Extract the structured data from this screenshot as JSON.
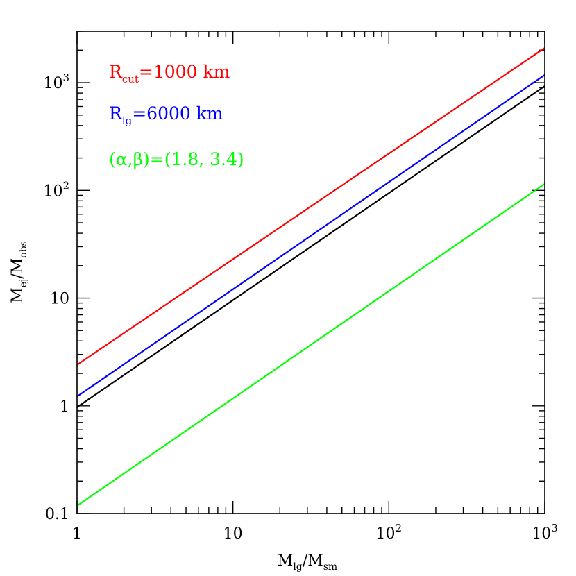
{
  "chart_data": {
    "type": "line",
    "xscale": "log",
    "yscale": "log",
    "xlim": [
      1,
      1000
    ],
    "ylim": [
      0.1,
      3000
    ],
    "x_ticks": [
      {
        "value": 1,
        "base": "1",
        "exp": ""
      },
      {
        "value": 10,
        "base": "10",
        "exp": ""
      },
      {
        "value": 100,
        "base": "10",
        "exp": "2"
      },
      {
        "value": 1000,
        "base": "10",
        "exp": "3"
      }
    ],
    "y_ticks": [
      {
        "value": 0.1,
        "base": "0.1",
        "exp": ""
      },
      {
        "value": 1,
        "base": "1",
        "exp": ""
      },
      {
        "value": 10,
        "base": "10",
        "exp": ""
      },
      {
        "value": 100,
        "base": "10",
        "exp": "2"
      },
      {
        "value": 1000,
        "base": "10",
        "exp": "3"
      }
    ],
    "xlabel": {
      "main1": "M",
      "sub1": "lg",
      "sep": "/",
      "main2": "M",
      "sub2": "sm"
    },
    "ylabel": {
      "main1": "M",
      "sub1": "ej",
      "sep": "/",
      "main2": "M",
      "sub2": "obs"
    },
    "grid": false,
    "series": [
      {
        "color": "#ff0000",
        "x": [
          1,
          1000
        ],
        "y": [
          2.4,
          2100
        ]
      },
      {
        "color": "#0000ff",
        "x": [
          1,
          1000
        ],
        "y": [
          1.22,
          1180
        ]
      },
      {
        "color": "#000000",
        "x": [
          1,
          1000
        ],
        "y": [
          0.97,
          930
        ]
      },
      {
        "color": "#00ff00",
        "x": [
          1,
          1000
        ],
        "y": [
          0.118,
          115
        ]
      }
    ],
    "annotations": [
      {
        "main": "R",
        "sub": "cut",
        "rest": "=1000  km",
        "color": "#ff0000"
      },
      {
        "main": "R",
        "sub": "lg",
        "rest": "=6000  km",
        "color": "#0000ff"
      },
      {
        "main": "(α,β)=(1.8,  3.4)",
        "sub": "",
        "rest": "",
        "color": "#00ff00"
      }
    ]
  }
}
